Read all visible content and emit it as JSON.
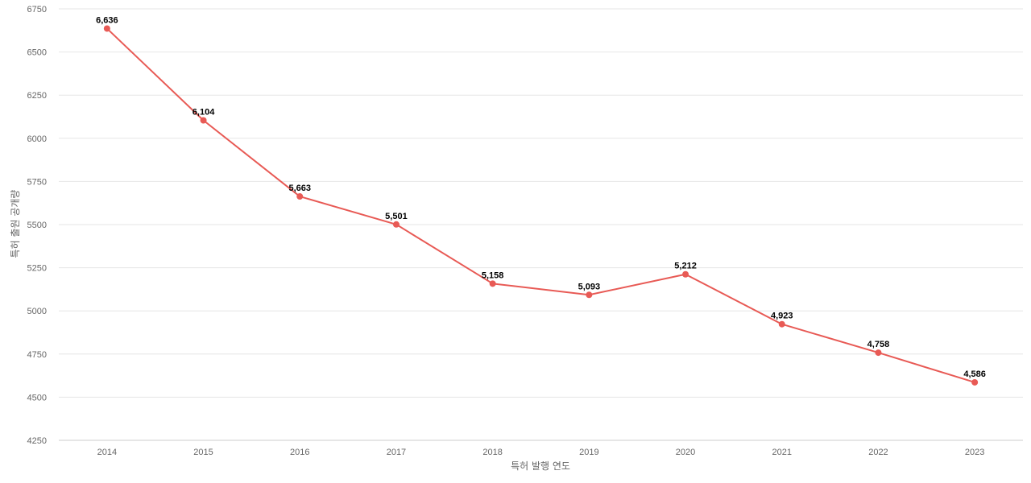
{
  "chart_data": {
    "type": "line",
    "title": "",
    "xlabel": "특허 발행 연도",
    "ylabel": "특허 출원 공개량",
    "categories": [
      "2014",
      "2015",
      "2016",
      "2017",
      "2018",
      "2019",
      "2020",
      "2021",
      "2022",
      "2023"
    ],
    "series": [
      {
        "values": [
          6636,
          6104,
          5663,
          5501,
          5158,
          5093,
          5212,
          4923,
          4758,
          4586
        ],
        "labels": [
          "6,636",
          "6,104",
          "5,663",
          "5,501",
          "5,158",
          "5,093",
          "5,212",
          "4,923",
          "4,758",
          "4,586"
        ],
        "color": "#e85a55"
      }
    ],
    "ylim": [
      4250,
      6750
    ],
    "yticks": [
      "4250",
      "4500",
      "4750",
      "5000",
      "5250",
      "5500",
      "5750",
      "6000",
      "6250",
      "6500",
      "6750"
    ],
    "grid": true,
    "legend": "none"
  }
}
